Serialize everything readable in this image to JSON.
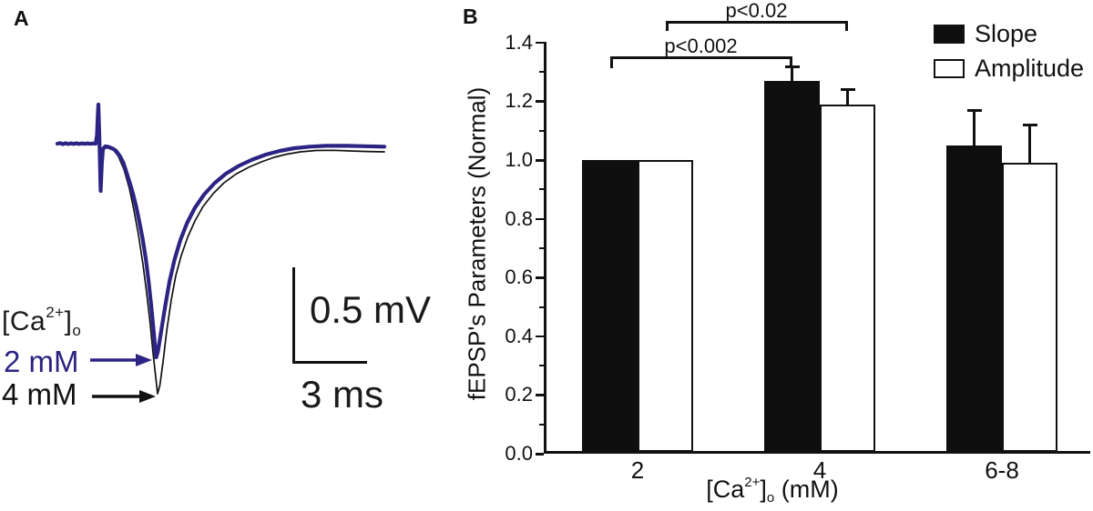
{
  "panel_a": {
    "label": "A",
    "ca_label": {
      "text": "[Ca2+]o",
      "pre": "[Ca",
      "sup": "2+",
      "close": "]",
      "sub": "o"
    },
    "trace_labels": [
      {
        "text": "2 mM",
        "color": "#2c2483"
      },
      {
        "text": "4 mM",
        "color": "#111111"
      }
    ],
    "scale_v": "0.5 mV",
    "scale_h": "3 ms"
  },
  "panel_b": {
    "label": "B"
  },
  "colors": {
    "trace_blue": "#2c2483",
    "bar_fill_slope": "#0f0f0f",
    "bar_fill_amplitude": "#ffffff",
    "axis": "#111111"
  },
  "chart_data": {
    "type": "bar",
    "title": "",
    "categories": [
      "2",
      "4",
      "6-8"
    ],
    "series": [
      {
        "name": "Slope",
        "fill": "#0f0f0f",
        "values": [
          1.0,
          1.27,
          1.05
        ],
        "errors": [
          0,
          0.05,
          0.12
        ]
      },
      {
        "name": "Amplitude",
        "fill": "#ffffff",
        "values": [
          1.0,
          1.19,
          0.99
        ],
        "errors": [
          0,
          0.05,
          0.13
        ]
      }
    ],
    "xlabel": "[Ca2+]o (mM)",
    "xlabel_parts": {
      "pre": "[Ca",
      "sup": "2+",
      "close": "]",
      "sub": "o",
      "post": " (mM)"
    },
    "ylabel": "fEPSP's Parameters (Normal)",
    "ylim": [
      0.0,
      1.4
    ],
    "ytick_step": 0.2,
    "ytick_labels": [
      "0.0",
      "0.2",
      "0.4",
      "0.6",
      "0.8",
      "1.0",
      "1.2",
      "1.4"
    ],
    "grid": false,
    "legend_position": "top-right",
    "error_bars": "upper",
    "significance": [
      {
        "label": "p<0.002",
        "series": "Slope",
        "from": "2",
        "to": "4"
      },
      {
        "label": "p<0.02",
        "series": "Amplitude",
        "from": "2",
        "to": "4"
      }
    ]
  }
}
